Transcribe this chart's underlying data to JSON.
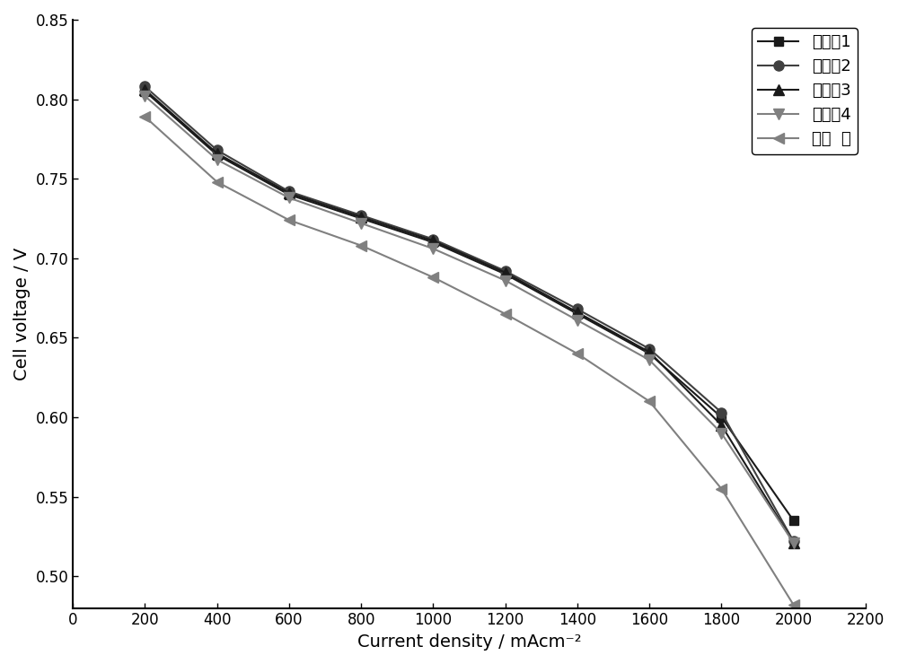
{
  "title": "",
  "xlabel": "Current density / mAcm⁻²",
  "ylabel": "Cell voltage / V",
  "xlim": [
    0,
    2200
  ],
  "ylim": [
    0.48,
    0.85
  ],
  "xticks": [
    0,
    200,
    400,
    600,
    800,
    1000,
    1200,
    1400,
    1600,
    1800,
    2000,
    2200
  ],
  "yticks": [
    0.5,
    0.55,
    0.6,
    0.65,
    0.7,
    0.75,
    0.8,
    0.85
  ],
  "series": [
    {
      "label": "实施例1",
      "color": "#1a1a1a",
      "marker": "s",
      "markersize": 7,
      "linewidth": 1.5,
      "x": [
        200,
        400,
        600,
        800,
        1000,
        1200,
        1400,
        1600,
        1800,
        2000
      ],
      "y": [
        0.805,
        0.765,
        0.74,
        0.725,
        0.71,
        0.69,
        0.665,
        0.64,
        0.6,
        0.535
      ]
    },
    {
      "label": "实施例2",
      "color": "#404040",
      "marker": "o",
      "markersize": 8,
      "linewidth": 1.5,
      "x": [
        200,
        400,
        600,
        800,
        1000,
        1200,
        1400,
        1600,
        1800,
        2000
      ],
      "y": [
        0.808,
        0.768,
        0.742,
        0.727,
        0.712,
        0.692,
        0.668,
        0.643,
        0.603,
        0.522
      ]
    },
    {
      "label": "实施例3",
      "color": "#1a1a1a",
      "marker": "^",
      "markersize": 8,
      "linewidth": 1.5,
      "x": [
        200,
        400,
        600,
        800,
        1000,
        1200,
        1400,
        1600,
        1800,
        2000
      ],
      "y": [
        0.806,
        0.766,
        0.741,
        0.726,
        0.711,
        0.691,
        0.666,
        0.641,
        0.595,
        0.521
      ]
    },
    {
      "label": "实施例4",
      "color": "#808080",
      "marker": "v",
      "markersize": 8,
      "linewidth": 1.5,
      "x": [
        200,
        400,
        600,
        800,
        1000,
        1200,
        1400,
        1600,
        1800,
        2000
      ],
      "y": [
        0.802,
        0.762,
        0.738,
        0.722,
        0.706,
        0.686,
        0.661,
        0.636,
        0.59,
        0.521
      ]
    },
    {
      "label": "对比  例",
      "color": "#808080",
      "marker": "<",
      "markersize": 9,
      "linewidth": 1.5,
      "x": [
        200,
        400,
        600,
        800,
        1000,
        1200,
        1400,
        1600,
        1800,
        2000
      ],
      "y": [
        0.789,
        0.748,
        0.724,
        0.708,
        0.688,
        0.665,
        0.64,
        0.61,
        0.555,
        0.482
      ]
    }
  ],
  "background_color": "#ffffff",
  "legend_fontsize": 13,
  "axis_fontsize": 14,
  "tick_fontsize": 12
}
